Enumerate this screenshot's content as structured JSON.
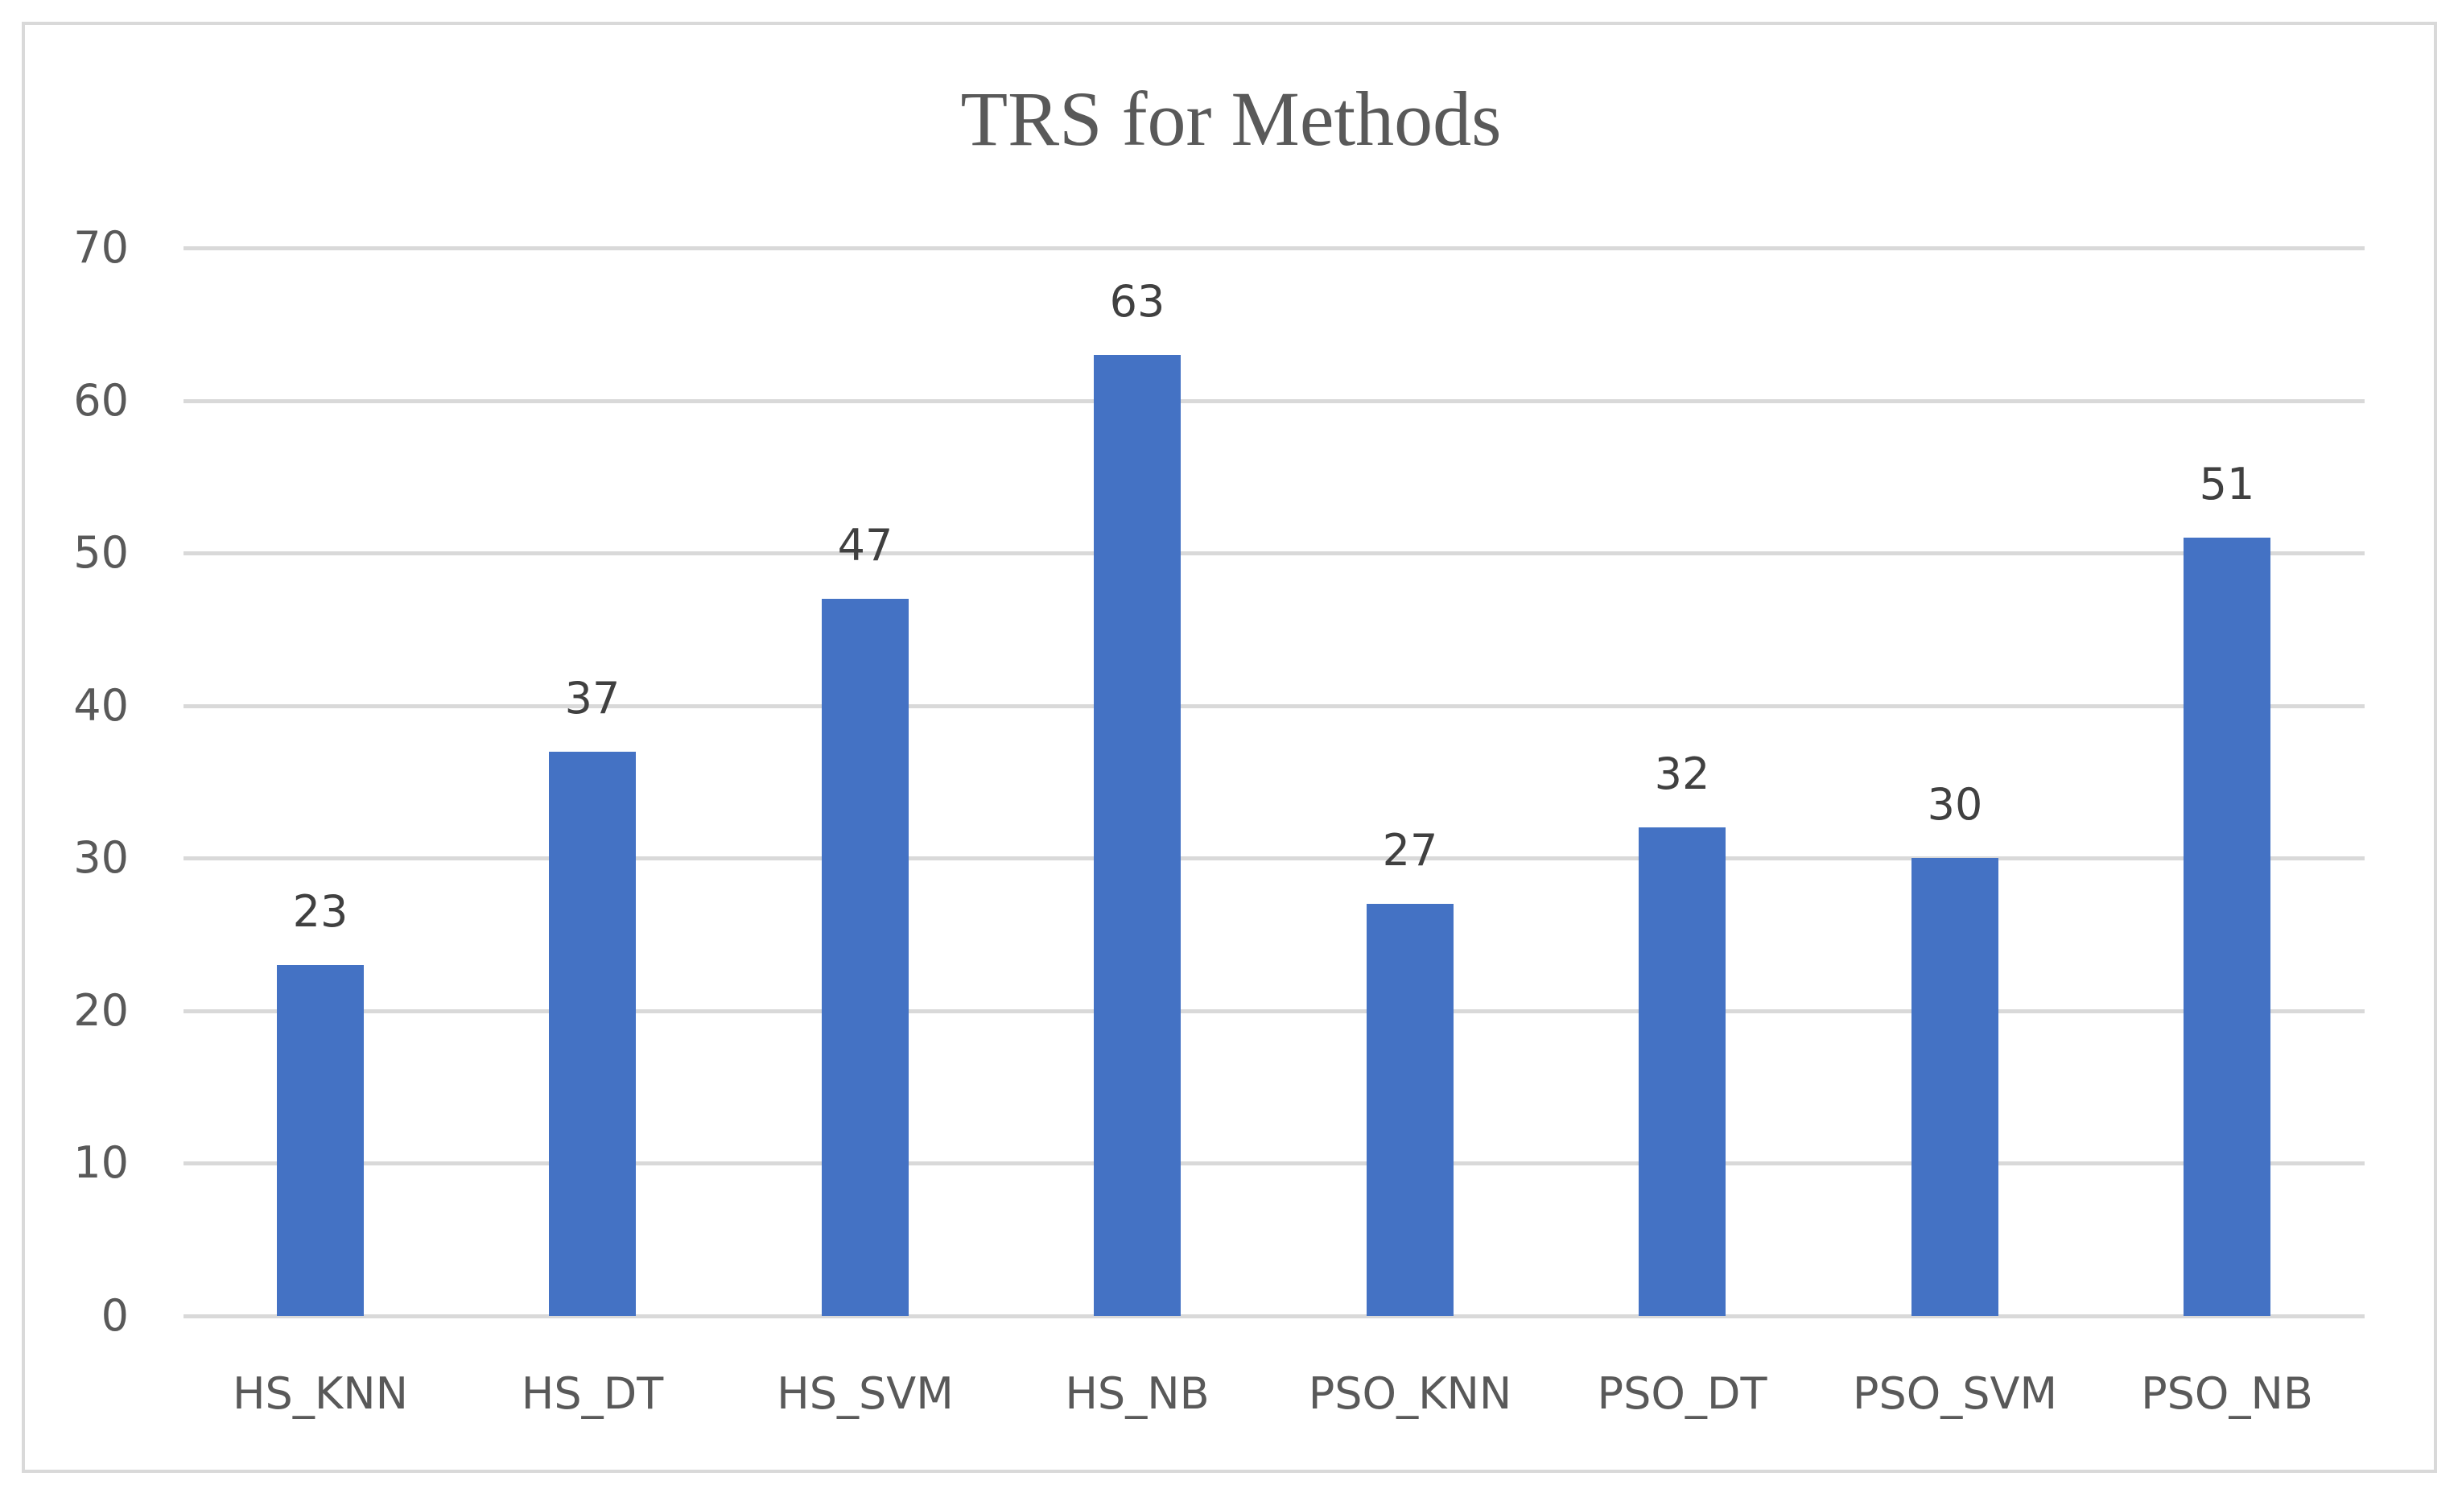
{
  "chart_data": {
    "type": "bar",
    "title": "TRS for Methods",
    "xlabel": "",
    "ylabel": "",
    "categories": [
      "HS_KNN",
      "HS_DT",
      "HS_SVM",
      "HS_NB",
      "PSO_KNN",
      "PSO_DT",
      "PSO_SVM",
      "PSO_NB"
    ],
    "values": [
      23,
      37,
      47,
      63,
      27,
      32,
      30,
      51
    ],
    "data_labels": [
      "23",
      "37",
      "47",
      "63",
      "27",
      "32",
      "30",
      "51"
    ],
    "ylim": [
      0,
      70
    ],
    "yticks": [
      0,
      10,
      20,
      30,
      40,
      50,
      60,
      70
    ],
    "ytick_labels": [
      "0",
      "10",
      "20",
      "30",
      "40",
      "50",
      "60",
      "70"
    ],
    "grid": true,
    "legend": null,
    "bar_color": "#4472c4",
    "gridline_color": "#d9d9d9"
  }
}
